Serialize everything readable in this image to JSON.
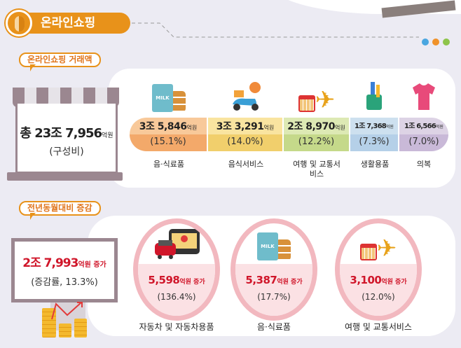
{
  "header": {
    "title": "온라인쇼핑",
    "dots": [
      "#4aa6e0",
      "#f0922a",
      "#8ec44a"
    ]
  },
  "transaction": {
    "section_label": "온라인쇼핑 거래액",
    "total_prefix": "총 23조 7,956",
    "total_unit": "억원",
    "total_sub": "(구성비)",
    "segments": [
      {
        "value": "3조 5,846",
        "unit": "억원",
        "share": "(15.1%)",
        "label": "음·식료품",
        "top": "#f8c99a",
        "bottom": "#f3a96a",
        "icon": "milk-cookies-icon"
      },
      {
        "value": "3조 3,291",
        "unit": "억원",
        "share": "(14.0%)",
        "label": "음식서비스",
        "top": "#f9e4a0",
        "bottom": "#f1cf6c",
        "icon": "delivery-scooter-icon"
      },
      {
        "value": "2조 8,970",
        "unit": "억원",
        "share": "(12.2%)",
        "label": "여행 및 교통서비스",
        "top": "#dde9b4",
        "bottom": "#c5d98a",
        "icon": "calendar-plane-icon"
      },
      {
        "value": "1조 7,368",
        "unit": "억원",
        "share": "(7.3%)",
        "label": "생활용품",
        "top": "#cde0ef",
        "bottom": "#b5d0e8",
        "icon": "toiletries-icon"
      },
      {
        "value": "1조 6,566",
        "unit": "억원",
        "share": "(7.0%)",
        "label": "의복",
        "top": "#ddd3e5",
        "bottom": "#c9b9d8",
        "icon": "tshirt-icon"
      }
    ]
  },
  "yoy": {
    "section_label": "전년동월대비 증감",
    "total_value": "2조 7,993",
    "total_unit": "억원 증가",
    "total_sub": "(증감률, 13.3%)",
    "items": [
      {
        "value": "5,598",
        "unit": "억원 증가",
        "rate": "(136.4%)",
        "label": "자동차 및 자동차용품",
        "icon": "car-navigation-icon"
      },
      {
        "value": "5,387",
        "unit": "억원 증가",
        "rate": "(17.7%)",
        "label": "음·식료품",
        "icon": "milk-cookies-icon"
      },
      {
        "value": "3,100",
        "unit": "억원 증가",
        "rate": "(12.0%)",
        "label": "여행 및 교통서비스",
        "icon": "calendar-plane-icon"
      }
    ]
  }
}
